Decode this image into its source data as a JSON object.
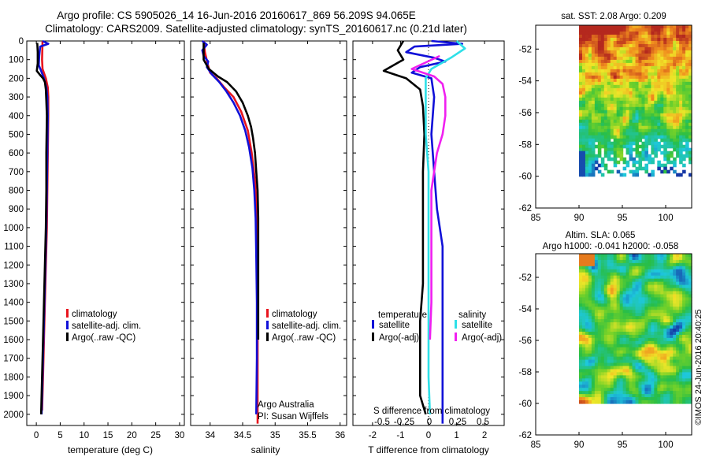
{
  "titles": {
    "line1": "Argo profile: CS 5905026_14 16-Jun-2016 20160617_869 56.209S 94.065E",
    "line2": "Climatology: CARS2009. Satellite-adjusted climatology: synTS_20160617.nc (0.21d later)"
  },
  "depth_axis": {
    "ticks": [
      0,
      100,
      200,
      300,
      400,
      500,
      600,
      700,
      800,
      900,
      1000,
      1100,
      1200,
      1300,
      1400,
      1500,
      1600,
      1700,
      1800,
      1900,
      2000
    ],
    "ylim": [
      0,
      2060
    ]
  },
  "colors": {
    "climatology": "#e8141d",
    "satellite": "#1010d8",
    "argo": "#000000",
    "satellite_salinity": "#2ee0e8",
    "argo_salinity": "#f020f0"
  },
  "credit": "Argo Australia",
  "pi": "PI: Susan Wijffels",
  "stamp": "©IMOS 24-Jun-2016 20:40:25",
  "chart_data": [
    {
      "type": "line",
      "name": "temperature",
      "xlabel": "temperature (deg C)",
      "xlim": [
        -2,
        31
      ],
      "xticks": [
        0,
        5,
        10,
        15,
        20,
        25,
        30
      ],
      "legend": [
        "climatology",
        "satellite-adj. clim.",
        "Argo(..raw -QC)"
      ],
      "series": [
        {
          "name": "climatology",
          "color": "#e8141d",
          "points": [
            [
              1.3,
              0
            ],
            [
              1.2,
              100
            ],
            [
              1.3,
              150
            ],
            [
              2.0,
              200
            ],
            [
              2.4,
              250
            ],
            [
              2.5,
              300
            ],
            [
              2.5,
              400
            ],
            [
              2.4,
              600
            ],
            [
              2.3,
              800
            ],
            [
              2.2,
              1000
            ],
            [
              2.0,
              1200
            ],
            [
              1.8,
              1400
            ],
            [
              1.6,
              1600
            ],
            [
              1.4,
              1800
            ],
            [
              1.2,
              1980
            ]
          ]
        },
        {
          "name": "satellite-adj. clim.",
          "color": "#1010d8",
          "points": [
            [
              1.3,
              0
            ],
            [
              2.5,
              15
            ],
            [
              0.8,
              30
            ],
            [
              0.6,
              80
            ],
            [
              0.5,
              130
            ],
            [
              1.0,
              160
            ],
            [
              1.6,
              200
            ],
            [
              2.1,
              250
            ],
            [
              2.3,
              300
            ],
            [
              2.4,
              400
            ],
            [
              2.3,
              600
            ],
            [
              2.2,
              800
            ],
            [
              2.1,
              1000
            ],
            [
              1.9,
              1200
            ],
            [
              1.7,
              1400
            ],
            [
              1.5,
              1600
            ],
            [
              1.3,
              1800
            ],
            [
              1.1,
              2000
            ]
          ]
        },
        {
          "name": "Argo(..raw -QC)",
          "color": "#000000",
          "points": [
            [
              0.2,
              10
            ],
            [
              0.3,
              60
            ],
            [
              0.3,
              120
            ],
            [
              0.1,
              160
            ],
            [
              0.7,
              180
            ],
            [
              1.4,
              200
            ],
            [
              1.8,
              220
            ],
            [
              2.0,
              260
            ],
            [
              2.1,
              320
            ],
            [
              2.2,
              400
            ],
            [
              2.1,
              600
            ],
            [
              2.1,
              800
            ],
            [
              2.0,
              1000
            ],
            [
              1.8,
              1200
            ],
            [
              1.6,
              1400
            ],
            [
              1.4,
              1600
            ],
            [
              1.2,
              1800
            ],
            [
              1.0,
              2000
            ]
          ]
        }
      ]
    },
    {
      "type": "line",
      "name": "salinity",
      "xlabel": "salinity",
      "xlim": [
        33.7,
        36.1
      ],
      "xticks": [
        34,
        34.5,
        35,
        35.5,
        36
      ],
      "xticklabels": [
        "34",
        "34.5",
        "35",
        "35.5",
        "36"
      ],
      "legend": [
        "climatology",
        "satellite-adj. clim.",
        "Argo(..raw -QC)"
      ],
      "series": [
        {
          "name": "climatology",
          "color": "#e8141d",
          "points": [
            [
              33.9,
              0
            ],
            [
              33.92,
              60
            ],
            [
              33.96,
              120
            ],
            [
              34.0,
              170
            ],
            [
              34.1,
              200
            ],
            [
              34.22,
              250
            ],
            [
              34.36,
              300
            ],
            [
              34.48,
              380
            ],
            [
              34.58,
              480
            ],
            [
              34.64,
              600
            ],
            [
              34.69,
              750
            ],
            [
              34.72,
              900
            ],
            [
              34.73,
              1100
            ],
            [
              34.73,
              1400
            ],
            [
              34.73,
              1700
            ],
            [
              34.73,
              2050
            ]
          ]
        },
        {
          "name": "satellite-adj. clim.",
          "color": "#1010d8",
          "points": [
            [
              33.88,
              0
            ],
            [
              33.95,
              20
            ],
            [
              33.88,
              50
            ],
            [
              33.9,
              80
            ],
            [
              33.97,
              110
            ],
            [
              33.95,
              140
            ],
            [
              34.03,
              180
            ],
            [
              34.14,
              220
            ],
            [
              34.25,
              270
            ],
            [
              34.36,
              330
            ],
            [
              34.46,
              400
            ],
            [
              34.54,
              480
            ],
            [
              34.6,
              570
            ],
            [
              34.65,
              680
            ],
            [
              34.68,
              800
            ],
            [
              34.7,
              950
            ],
            [
              34.71,
              1150
            ],
            [
              34.72,
              1400
            ],
            [
              34.72,
              1700
            ],
            [
              34.71,
              2000
            ]
          ]
        },
        {
          "name": "Argo(..raw -QC)",
          "color": "#000000",
          "points": [
            [
              33.9,
              10
            ],
            [
              33.9,
              100
            ],
            [
              33.98,
              150
            ],
            [
              34.12,
              190
            ],
            [
              34.26,
              220
            ],
            [
              34.4,
              270
            ],
            [
              34.5,
              330
            ],
            [
              34.58,
              400
            ],
            [
              34.63,
              460
            ],
            [
              34.66,
              520
            ],
            [
              34.69,
              600
            ],
            [
              34.71,
              700
            ],
            [
              34.73,
              800
            ],
            [
              34.74,
              950
            ],
            [
              34.74,
              1100
            ],
            [
              34.74,
              1300
            ],
            [
              34.74,
              1500
            ],
            [
              34.74,
              1600
            ]
          ]
        }
      ]
    },
    {
      "type": "line",
      "name": "difference",
      "xlabel": "T difference from climatology",
      "xlim": [
        -2.7,
        2.7
      ],
      "xticks": [
        -2,
        -1,
        0,
        1,
        2
      ],
      "xticklabels": [
        "-2",
        "-1",
        "0",
        "1",
        "2"
      ],
      "top_label": "S difference from climatology",
      "top_ticks": [
        "-0.5",
        "-0.25",
        "0",
        "0.25",
        "0.5"
      ],
      "legend_headers": [
        "temperature",
        "salinity"
      ],
      "legend": [
        "satellite",
        "Argo(-adj)",
        "satellite",
        "Argo(-adj)"
      ],
      "series": [
        {
          "name": "T satellite",
          "color": "#1010d8",
          "points": [
            [
              0.1,
              0
            ],
            [
              1.2,
              15
            ],
            [
              -0.5,
              30
            ],
            [
              -0.8,
              60
            ],
            [
              0.2,
              90
            ],
            [
              0.6,
              110
            ],
            [
              -0.3,
              140
            ],
            [
              -0.6,
              170
            ],
            [
              0.1,
              200
            ],
            [
              0.2,
              300
            ],
            [
              0.1,
              500
            ],
            [
              0.2,
              700
            ],
            [
              0.3,
              900
            ],
            [
              0.5,
              1100
            ],
            [
              0.5,
              1300
            ],
            [
              0.5,
              1500
            ],
            [
              0.5,
              1700
            ],
            [
              0.5,
              1900
            ],
            [
              0.5,
              2050
            ]
          ]
        },
        {
          "name": "T Argo(-adj)",
          "color": "#000000",
          "points": [
            [
              -0.9,
              0
            ],
            [
              -1.1,
              50
            ],
            [
              -0.9,
              100
            ],
            [
              -1.6,
              160
            ],
            [
              -0.8,
              200
            ],
            [
              -0.3,
              260
            ],
            [
              -0.2,
              350
            ],
            [
              -0.15,
              500
            ],
            [
              -0.2,
              700
            ],
            [
              -0.2,
              900
            ],
            [
              -0.2,
              1100
            ],
            [
              -0.2,
              1300
            ],
            [
              -0.3,
              1500
            ],
            [
              -0.3,
              1700
            ],
            [
              -0.3,
              1900
            ],
            [
              -0.1,
              2000
            ]
          ]
        },
        {
          "name": "S satellite",
          "color": "#2ee0e8",
          "points": [
            [
              1.0,
              0
            ],
            [
              1.3,
              40
            ],
            [
              0.8,
              90
            ],
            [
              0.1,
              150
            ],
            [
              -0.1,
              200
            ],
            [
              -0.1,
              300
            ],
            [
              -0.1,
              500
            ],
            [
              0.0,
              700
            ],
            [
              0.0,
              900
            ],
            [
              0.0,
              1200
            ],
            [
              0.0,
              1500
            ],
            [
              0.0,
              1800
            ],
            [
              0.05,
              2000
            ]
          ]
        },
        {
          "name": "S Argo(-adj)",
          "color": "#f020f0",
          "points": [
            [
              0.4,
              80
            ],
            [
              -0.6,
              150
            ],
            [
              0.2,
              190
            ],
            [
              0.5,
              230
            ],
            [
              0.6,
              300
            ],
            [
              0.6,
              400
            ],
            [
              0.5,
              500
            ],
            [
              0.3,
              600
            ],
            [
              0.2,
              700
            ],
            [
              0.1,
              800
            ],
            [
              0.1,
              900
            ],
            [
              0.1,
              1000
            ],
            [
              0.1,
              1200
            ],
            [
              0.1,
              1400
            ],
            [
              0.05,
              1600
            ]
          ]
        }
      ]
    },
    {
      "type": "heatmap",
      "name": "sst-map",
      "title": "sat. SST: 2.08 Argo: 0.209",
      "xlim": [
        85,
        103
      ],
      "ylim": [
        -62,
        -50.5
      ],
      "xticks": [
        85,
        90,
        95,
        100
      ],
      "yticks": [
        -52,
        -54,
        -56,
        -58,
        -60,
        -62
      ],
      "data_extent": {
        "lon": [
          90,
          103
        ],
        "lat": [
          -60,
          -50.5
        ]
      }
    },
    {
      "type": "heatmap",
      "name": "sla-map",
      "title": "Altim. SLA: 0.065",
      "subtitle": "Argo h1000: -0.041 h2000: -0.058",
      "xlim": [
        85,
        103
      ],
      "ylim": [
        -62,
        -50.5
      ],
      "xticks": [
        85,
        90,
        95,
        100
      ],
      "yticks": [
        -52,
        -54,
        -56,
        -58,
        -60,
        -62
      ],
      "data_extent": {
        "lon": [
          90,
          103
        ],
        "lat": [
          -60,
          -50.5
        ]
      }
    }
  ]
}
